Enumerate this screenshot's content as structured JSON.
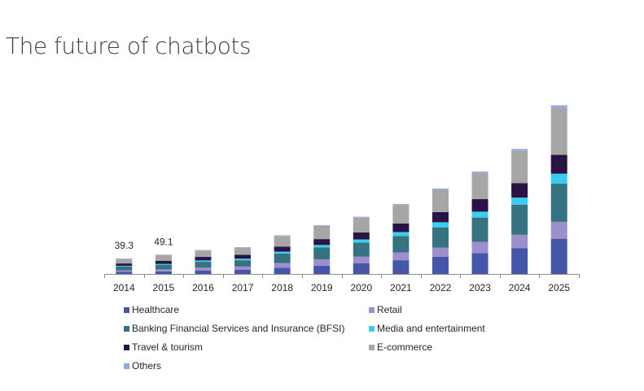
{
  "title": "The future of chatbots",
  "colors": {
    "Healthcare": "#4455AA",
    "Retail": "#9E8FCC",
    "BFSI": "#357382",
    "Media": "#3BCCF2",
    "Travel": "#2A1445",
    "Ecommerce": "#A6A6A6",
    "Others": "#91A8DC"
  },
  "chart_data": {
    "type": "bar",
    "stacked": true,
    "categories": [
      "2014",
      "2015",
      "2016",
      "2017",
      "2018",
      "2019",
      "2020",
      "2021",
      "2022",
      "2023",
      "2024",
      "2025"
    ],
    "series": [
      {
        "name": "Healthcare",
        "values": [
          5.3,
          6.6,
          9.0,
          11.0,
          16.0,
          21.0,
          27.0,
          35.0,
          44.0,
          53.0,
          66.0,
          90.0
        ]
      },
      {
        "name": "Retail",
        "values": [
          4.0,
          5.0,
          7.0,
          8.0,
          12.0,
          16.0,
          17.0,
          20.0,
          23.0,
          29.0,
          34.0,
          43.0
        ]
      },
      {
        "name": "Banking Financial Services and Insurance (BFSI)",
        "values": [
          10.0,
          12.0,
          15.0,
          16.0,
          24.0,
          31.0,
          36.0,
          42.0,
          52.0,
          62.0,
          77.0,
          98.0
        ]
      },
      {
        "name": "Media and entertainment",
        "values": [
          1.5,
          2.0,
          3.5,
          4.0,
          5.0,
          6.0,
          8.0,
          10.0,
          13.0,
          15.0,
          18.0,
          25.0
        ]
      },
      {
        "name": "Travel & tourism",
        "values": [
          6.0,
          8.0,
          9.0,
          10.0,
          13.0,
          15.0,
          18.0,
          22.0,
          26.0,
          32.0,
          37.0,
          48.0
        ]
      },
      {
        "name": "E-commerce",
        "values": [
          11.0,
          14.0,
          16.0,
          18.0,
          27.0,
          34.0,
          38.0,
          47.0,
          57.0,
          67.0,
          82.0,
          120.0
        ]
      },
      {
        "name": "Others",
        "values": [
          1.5,
          1.5,
          1.5,
          1.5,
          1.5,
          1.5,
          2.0,
          2.5,
          3.0,
          3.5,
          5.0,
          6.5
        ]
      }
    ],
    "data_labels": [
      {
        "category": "2014",
        "text": "39.3"
      },
      {
        "category": "2015",
        "text": "49.1"
      }
    ],
    "xlabel": "",
    "ylabel": "",
    "ylim": [
      0,
      440
    ],
    "y_axis_visible": false,
    "grid": false,
    "legend_position": "bottom"
  }
}
